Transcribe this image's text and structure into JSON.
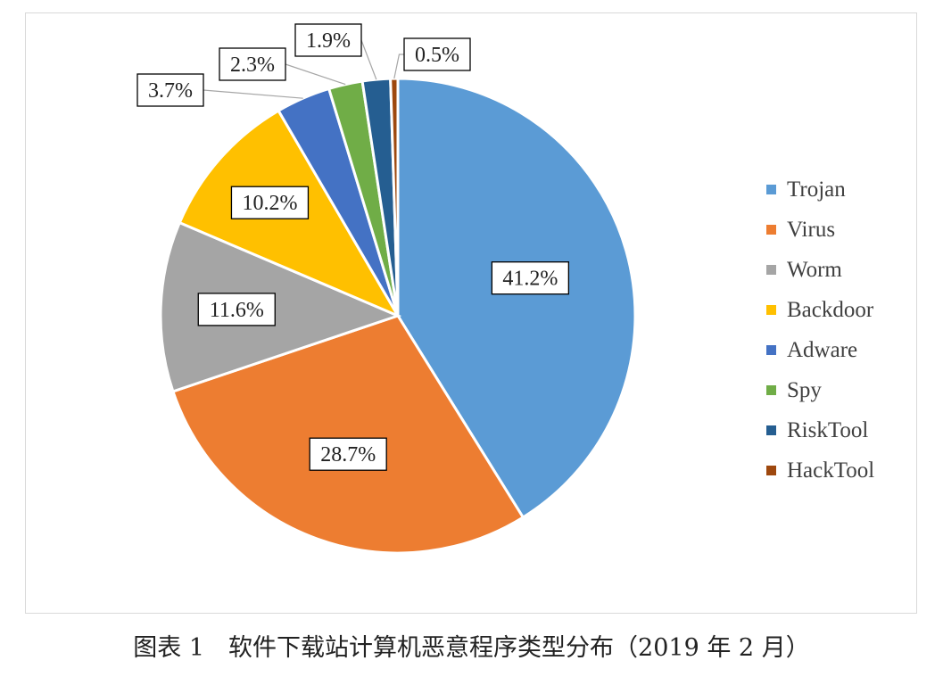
{
  "chart_data": {
    "type": "pie",
    "title": "",
    "slices": [
      {
        "name": "Trojan",
        "value": 41.2,
        "label": "41.2%",
        "color": "#5B9BD5"
      },
      {
        "name": "Virus",
        "value": 28.7,
        "label": "28.7%",
        "color": "#ED7D31"
      },
      {
        "name": "Worm",
        "value": 11.6,
        "label": "11.6%",
        "color": "#A5A5A5"
      },
      {
        "name": "Backdoor",
        "value": 10.2,
        "label": "10.2%",
        "color": "#FFC000"
      },
      {
        "name": "Adware",
        "value": 3.7,
        "label": "3.7%",
        "color": "#4472C4"
      },
      {
        "name": "Spy",
        "value": 2.3,
        "label": "2.3%",
        "color": "#70AD47"
      },
      {
        "name": "RiskTool",
        "value": 1.9,
        "label": "1.9%",
        "color": "#255E91"
      },
      {
        "name": "HackTool",
        "value": 0.5,
        "label": "0.5%",
        "color": "#9E480E"
      }
    ],
    "legend_position": "right"
  },
  "caption": "图表 1　软件下载站计算机恶意程序类型分布（2019 年 2 月）"
}
